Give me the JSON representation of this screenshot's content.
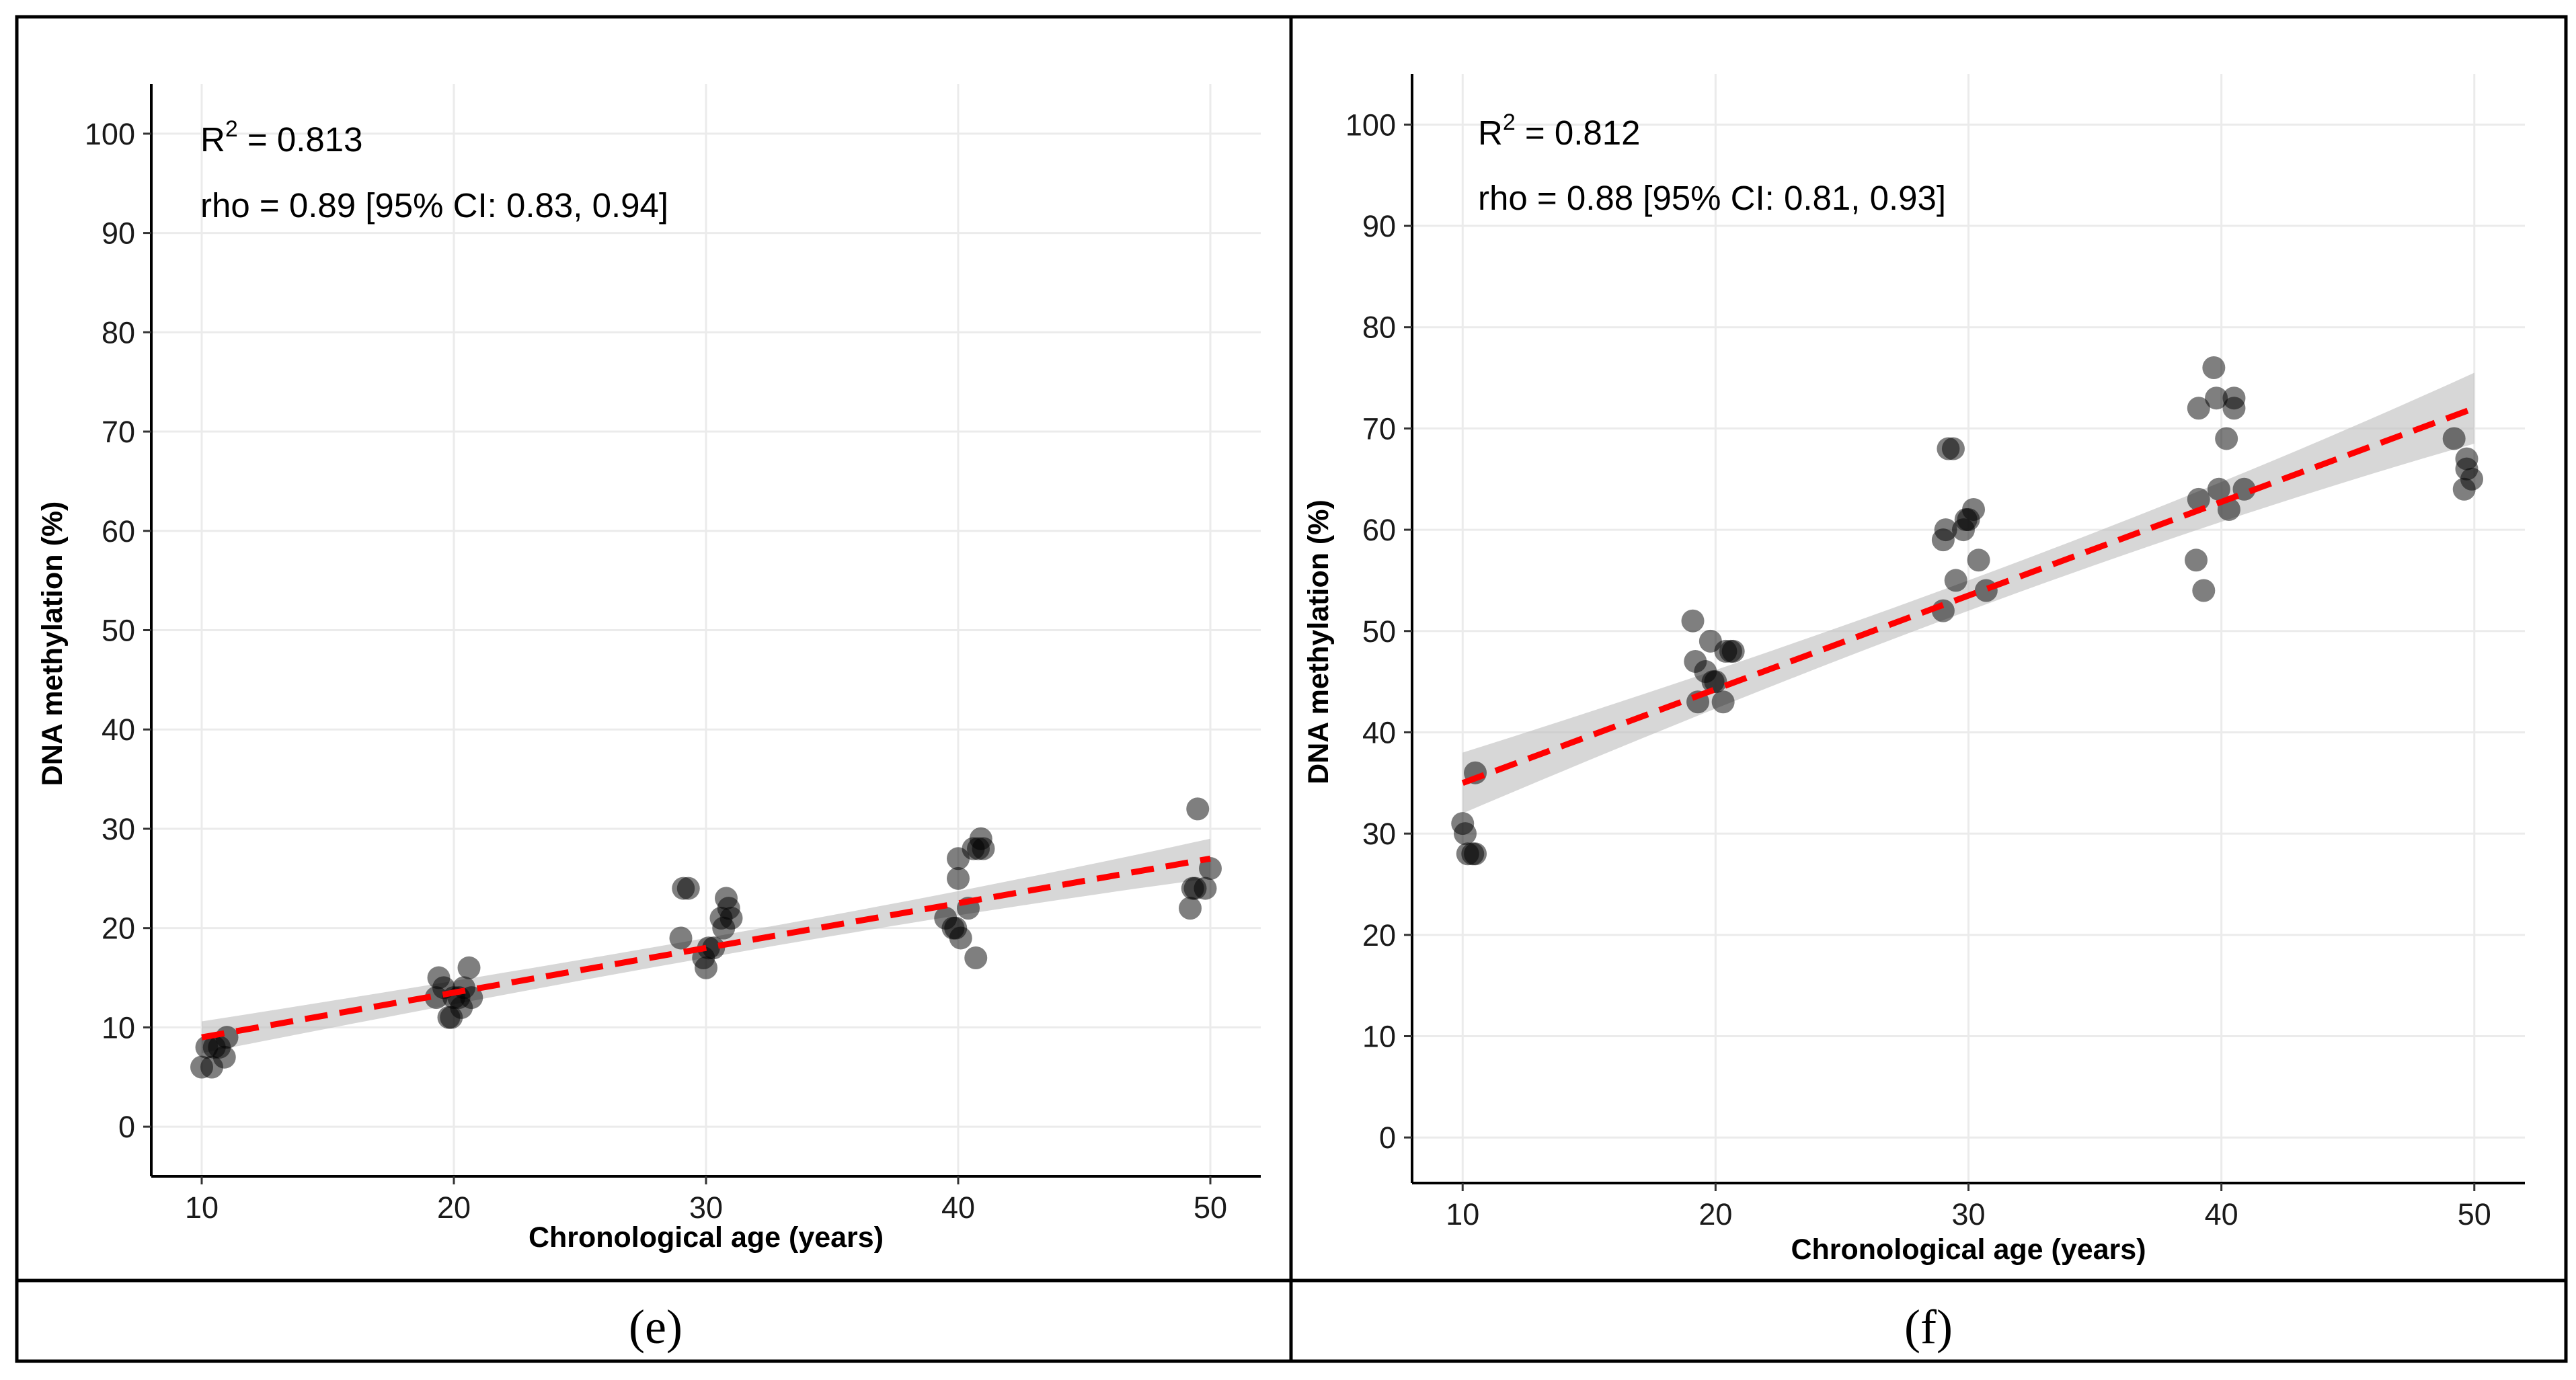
{
  "chart_data": [
    {
      "type": "scatter",
      "panel_label": "(e)",
      "xlabel": "Chronological age (years)",
      "ylabel": "DNA methylation (%)",
      "xlim": [
        8,
        52
      ],
      "ylim": [
        -5,
        105
      ],
      "x_ticks": [
        10,
        20,
        30,
        40,
        50
      ],
      "y_ticks": [
        0,
        10,
        20,
        30,
        40,
        50,
        60,
        70,
        80,
        90,
        100
      ],
      "grid": true,
      "annotation_r2": {
        "label": "R",
        "superscript": "2",
        "value": " = 0.813"
      },
      "annotation_rho": "rho = 0.89 [95% CI: 0.83, 0.94]",
      "fit": {
        "x": [
          10,
          50
        ],
        "y": [
          9,
          27
        ],
        "ci_halfwidth_start": 1.6,
        "ci_halfwidth_end": 2.0,
        "ci_halfwidth_mid": 1.0
      },
      "points": [
        [
          10.0,
          6
        ],
        [
          10.2,
          8
        ],
        [
          10.4,
          6
        ],
        [
          10.5,
          8
        ],
        [
          10.7,
          8
        ],
        [
          10.9,
          7
        ],
        [
          11.0,
          9
        ],
        [
          19.3,
          13
        ],
        [
          19.4,
          15
        ],
        [
          19.6,
          14
        ],
        [
          19.8,
          11
        ],
        [
          19.9,
          11
        ],
        [
          20.0,
          13
        ],
        [
          20.2,
          13
        ],
        [
          20.3,
          12
        ],
        [
          20.4,
          14
        ],
        [
          20.6,
          16
        ],
        [
          20.7,
          13
        ],
        [
          29.0,
          19
        ],
        [
          29.1,
          24
        ],
        [
          29.3,
          24
        ],
        [
          29.9,
          17
        ],
        [
          30.0,
          16
        ],
        [
          30.1,
          18
        ],
        [
          30.3,
          18
        ],
        [
          30.6,
          21
        ],
        [
          30.7,
          20
        ],
        [
          30.8,
          23
        ],
        [
          30.9,
          22
        ],
        [
          31.0,
          21
        ],
        [
          39.5,
          21
        ],
        [
          39.8,
          20
        ],
        [
          39.9,
          20
        ],
        [
          40.0,
          27
        ],
        [
          40.1,
          19
        ],
        [
          40.0,
          25
        ],
        [
          40.4,
          22
        ],
        [
          40.6,
          28
        ],
        [
          40.7,
          17
        ],
        [
          40.8,
          28
        ],
        [
          40.9,
          29
        ],
        [
          41.0,
          28
        ],
        [
          49.2,
          22
        ],
        [
          49.3,
          24
        ],
        [
          49.4,
          24
        ],
        [
          49.5,
          32
        ],
        [
          49.8,
          24
        ],
        [
          50.0,
          26
        ]
      ]
    },
    {
      "type": "scatter",
      "panel_label": "(f)",
      "xlabel": "Chronological age (years)",
      "ylabel": "DNA methylation (%)",
      "xlim": [
        8,
        52
      ],
      "ylim": [
        -4.5,
        105
      ],
      "x_ticks": [
        10,
        20,
        30,
        40,
        50
      ],
      "y_ticks": [
        0,
        10,
        20,
        30,
        40,
        50,
        60,
        70,
        80,
        90,
        100
      ],
      "grid": true,
      "annotation_r2": {
        "label": "R",
        "superscript": "2",
        "value": " = 0.812"
      },
      "annotation_rho": "rho = 0.88 [95% CI: 0.81, 0.93]",
      "fit": {
        "x": [
          10,
          50
        ],
        "y": [
          35,
          72
        ],
        "ci_halfwidth_start": 3.0,
        "ci_halfwidth_end": 3.5,
        "ci_halfwidth_mid": 1.5
      },
      "points": [
        [
          10.0,
          31
        ],
        [
          10.1,
          30
        ],
        [
          10.2,
          28
        ],
        [
          10.4,
          28
        ],
        [
          10.5,
          36
        ],
        [
          10.5,
          28
        ],
        [
          19.1,
          51
        ],
        [
          19.2,
          47
        ],
        [
          19.3,
          43
        ],
        [
          19.6,
          46
        ],
        [
          19.8,
          49
        ],
        [
          19.9,
          45
        ],
        [
          20.0,
          45
        ],
        [
          20.3,
          43
        ],
        [
          20.4,
          48
        ],
        [
          20.6,
          48
        ],
        [
          20.7,
          48
        ],
        [
          29.0,
          52
        ],
        [
          29.0,
          59
        ],
        [
          29.1,
          60
        ],
        [
          29.2,
          68
        ],
        [
          29.4,
          68
        ],
        [
          29.5,
          55
        ],
        [
          29.8,
          60
        ],
        [
          29.9,
          61
        ],
        [
          30.0,
          61
        ],
        [
          30.2,
          62
        ],
        [
          30.4,
          57
        ],
        [
          30.7,
          54
        ],
        [
          39.0,
          57
        ],
        [
          39.1,
          63
        ],
        [
          39.1,
          72
        ],
        [
          39.3,
          54
        ],
        [
          39.7,
          76
        ],
        [
          39.8,
          73
        ],
        [
          39.9,
          64
        ],
        [
          40.2,
          69
        ],
        [
          40.3,
          62
        ],
        [
          40.5,
          73
        ],
        [
          40.5,
          72
        ],
        [
          40.9,
          64
        ],
        [
          49.2,
          69
        ],
        [
          49.6,
          64
        ],
        [
          49.7,
          67
        ],
        [
          49.7,
          66
        ],
        [
          49.9,
          65
        ]
      ]
    }
  ]
}
